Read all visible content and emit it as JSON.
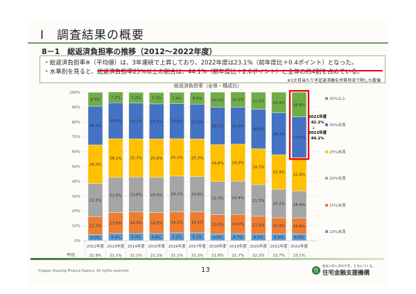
{
  "page": {
    "title": "Ⅰ　調査結果の概要",
    "subtitle": "8－1　総返済負担率の推移（2012～2022年度）",
    "bullets": [
      "・総返済負担率※（平均値）は、3年連続で上昇しており、2022年度は23.1%（前年度比＋0.4ポイント）となった。",
      "・水準別を見ると、総返済負担率25%以上の割合は、44.1%（前年度比＋2.0ポイント）と全体の約4割を占めている。"
    ],
    "note": "※1か月当たり予定返済額を世帯月収で除した数値",
    "copyright": "©Japan Housing Finance Agency. All rights reserved.",
    "page_number": "13",
    "logo_tagline": "住まいのしあわせを、ともにつくる。",
    "logo_org": "住宅金融支援機構",
    "logo_mark": "住"
  },
  "chart_data": {
    "type": "bar",
    "stacked": true,
    "title": "総返済負担率（全体・構成比）",
    "categories": [
      "2012年度",
      "2013年度",
      "2014年度",
      "2015年度",
      "2016年度",
      "2017年度",
      "2018年度",
      "2019年度",
      "2020年度",
      "2021年度",
      "2022年度"
    ],
    "ylim": [
      0,
      100
    ],
    "yticks": [
      "0%",
      "10%",
      "20%",
      "30%",
      "40%",
      "50%",
      "60%",
      "70%",
      "80%",
      "90%",
      "100%"
    ],
    "grid": true,
    "legend_placement": "right",
    "series": [
      {
        "name": "10%未満",
        "color": "#5b9bd5",
        "values": [
          4.0,
          4.9,
          5.0,
          4.8,
          5.2,
          5.2,
          4.5,
          4.7,
          4.5,
          4.5,
          4.5
        ]
      },
      {
        "name": "15%未満",
        "color": "#ed7d31",
        "values": [
          12.2,
          13.9,
          14.3,
          14.0,
          14.2,
          14.2,
          13.0,
          13.0,
          11.9,
          10.9,
          10.6
        ]
      },
      {
        "name": "20%未満",
        "color": "#a5a5a5",
        "values": [
          22.3,
          23.8,
          23.6,
          23.9,
          24.1,
          23.8,
          22.4,
          22.4,
          21.3,
          19.2,
          18.4
        ]
      },
      {
        "name": "25%未満",
        "color": "#ffc000",
        "values": [
          26.0,
          26.1,
          25.7,
          25.8,
          25.2,
          25.3,
          24.8,
          24.9,
          24.2,
          23.3,
          22.4
        ]
      },
      {
        "name": "30%未満",
        "color": "#4472c4",
        "values": [
          26.1,
          24.2,
          24.1,
          23.6,
          23.6,
          23.5,
          25.2,
          24.9,
          26.6,
          28.2,
          27.5
        ]
      },
      {
        "name": "30%以上",
        "color": "#70ad47",
        "values": [
          9.3,
          7.2,
          7.2,
          7.7,
          7.6,
          8.0,
          10.1,
          10.2,
          11.5,
          13.9,
          16.6
        ]
      }
    ],
    "average_label": "平均",
    "averages": [
      "21.9%",
      "21.2%",
      "21.1%",
      "21.2%",
      "21.1%",
      "21.2%",
      "21.8%",
      "21.7%",
      "22.2%",
      "22.7%",
      "23.1%"
    ],
    "annotation": {
      "from_label": "2021年度",
      "from_value": "42.1%",
      "arrow": "↓",
      "to_label": "2022年度",
      "to_value": "44.1%"
    },
    "highlight_color": "#e00000"
  }
}
